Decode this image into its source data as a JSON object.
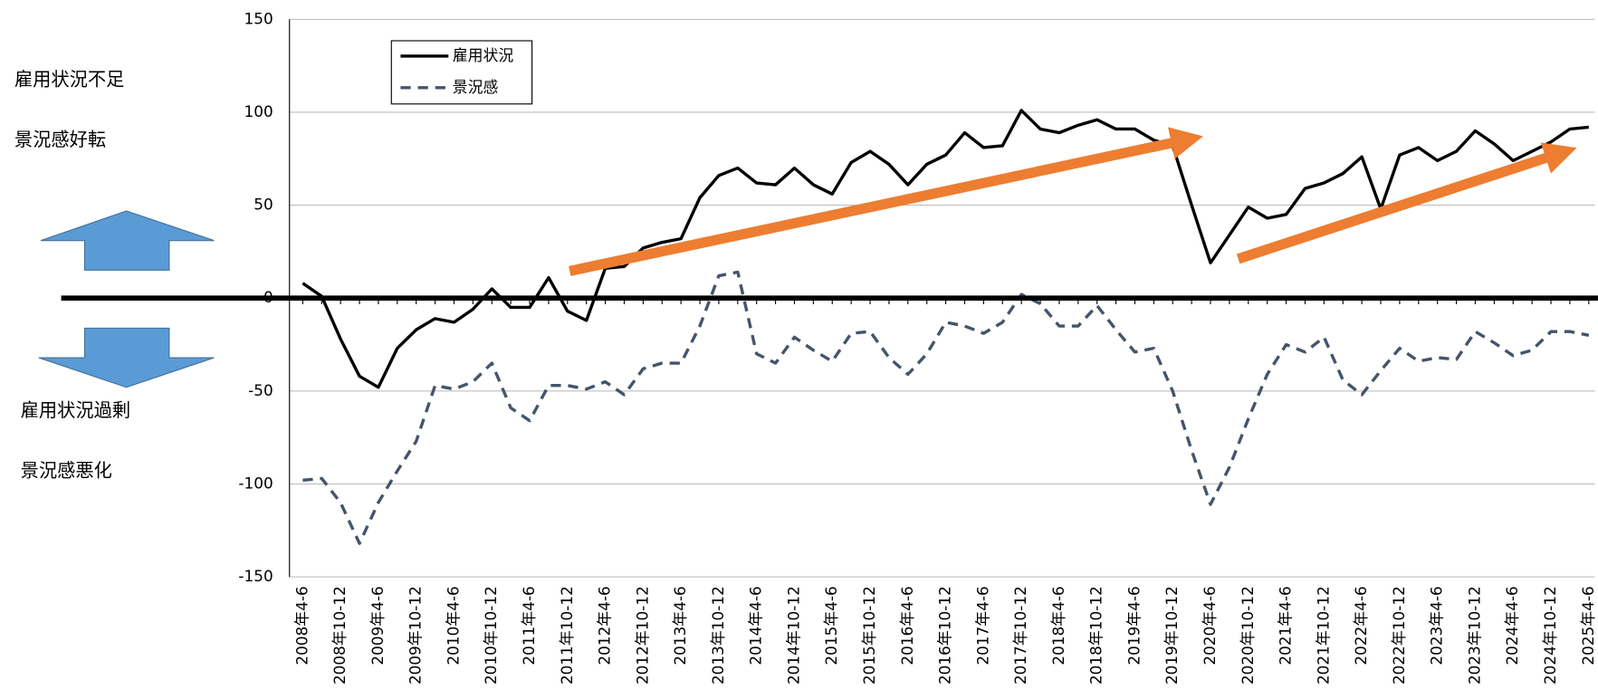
{
  "chart_data": {
    "type": "line",
    "annotations": [
      "雇用状況不足",
      "景況感好転",
      "雇用状況過剰",
      "景況感悪化"
    ],
    "categories": [
      "2008年4-6",
      null,
      "2008年10-12",
      null,
      "2009年4-6",
      null,
      "2009年10-12",
      null,
      "2010年4-6",
      null,
      "2010年10-12",
      null,
      "2011年4-6",
      null,
      "2011年10-12",
      null,
      "2012年4-6",
      null,
      "2012年10-12",
      null,
      "2013年4-6",
      null,
      "2013年10-12",
      null,
      "2014年4-6",
      null,
      "2014年10-12",
      null,
      "2015年4-6",
      null,
      "2015年10-12",
      null,
      "2016年4-6",
      null,
      "2016年10-12",
      null,
      "2017年4-6",
      null,
      "2017年10-12",
      null,
      "2018年4-6",
      null,
      "2018年10-12",
      null,
      "2019年4-6",
      null,
      "2019年10-12",
      null,
      "2020年4-6",
      null,
      "2020年10-12",
      null,
      "2021年4-6",
      null,
      "2021年10-12",
      null,
      "2022年4-6",
      null,
      "2022年10-12",
      null,
      "2023年4-6",
      null,
      "2023年10-12",
      null,
      "2024年4-6",
      null,
      "2024年10-12",
      null,
      "2025年4-6"
    ],
    "series": [
      {
        "name": "雇用状況",
        "color": "#000000",
        "dash": false,
        "values": [
          8,
          1,
          -22,
          -42,
          -48,
          -27,
          -17,
          -11,
          -13,
          -6,
          5,
          -5,
          -5,
          11,
          -7,
          -12,
          16,
          17,
          27,
          30,
          32,
          54,
          66,
          70,
          62,
          61,
          70,
          61,
          56,
          73,
          79,
          72,
          61,
          72,
          77,
          89,
          81,
          82,
          101,
          91,
          89,
          93,
          96,
          91,
          91,
          85,
          82,
          50,
          19,
          34,
          49,
          43,
          45,
          59,
          62,
          67,
          76,
          48,
          77,
          81,
          74,
          79,
          90,
          83,
          74,
          79,
          84,
          91,
          92
        ]
      },
      {
        "name": "景況感",
        "color": "#44546a",
        "dash": true,
        "values": [
          -98,
          -97,
          -110,
          -132,
          -110,
          -93,
          -77,
          -47,
          -49,
          -45,
          -35,
          -59,
          -66,
          -47,
          -47,
          -49,
          -45,
          -52,
          -38,
          -35,
          -35,
          -15,
          12,
          14,
          -30,
          -35,
          -21,
          -28,
          -34,
          -19,
          -18,
          -32,
          -41,
          -30,
          -13,
          -15,
          -19,
          -13,
          2,
          -3,
          -15,
          -15,
          -4,
          -17,
          -29,
          -27,
          -50,
          -82,
          -111,
          -91,
          -65,
          -41,
          -25,
          -29,
          -21,
          -44,
          -52,
          -39,
          -27,
          -34,
          -32,
          -33,
          -18,
          -24,
          -31,
          -28,
          -18,
          -18,
          -20
        ]
      }
    ],
    "ylim": [
      -150,
      150
    ],
    "yticks": [
      -150,
      -100,
      -50,
      0,
      50,
      100,
      150
    ],
    "grid": true,
    "legend": "upper left"
  }
}
